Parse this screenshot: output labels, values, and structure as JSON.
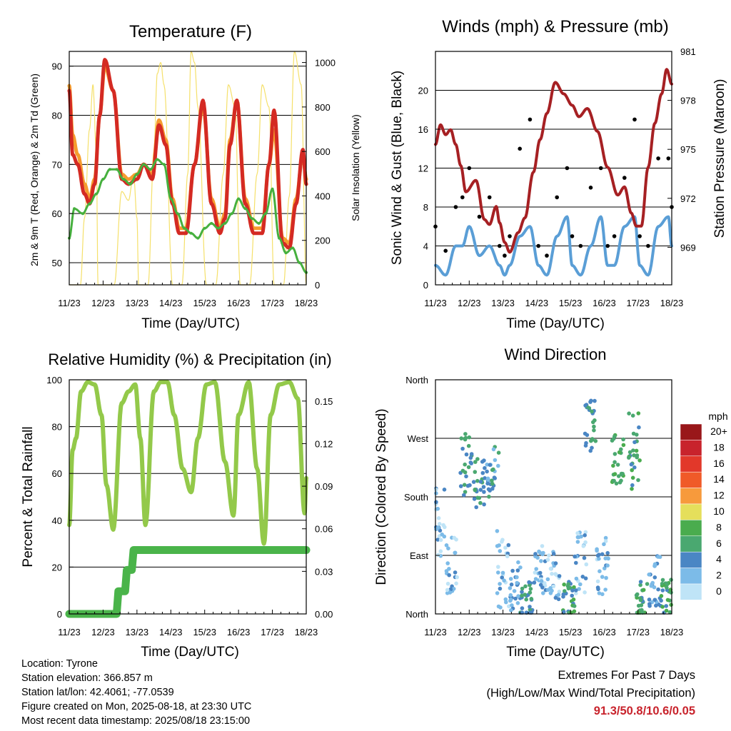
{
  "colors": {
    "red": "#d42a23",
    "orange": "#f59c2e",
    "green": "#46b03e",
    "yellow": "#f5e06a",
    "blue": "#5a9ed6",
    "black": "#000000",
    "maroon": "#a62023",
    "humidity": "#93c94a",
    "precip": "#4ab44a"
  },
  "info": {
    "location": "Location: Tyrone",
    "elevation": "Station elevation: 366.857 m",
    "latlon": "Station lat/lon: 42.4061; -77.0539",
    "created": "Figure created on Mon, 2025-08-18, at 23:30 UTC",
    "recent": "Most recent data timestamp: 2025/08/18 23:15:00"
  },
  "extremes": {
    "title": "Extremes For Past 7 Days",
    "subtitle": "(High/Low/Max Wind/Total Precipitation)",
    "values": "91.3/50.8/10.6/0.05"
  },
  "chart_data": [
    {
      "type": "line",
      "title": "Temperature (F)",
      "xlabel": "Time (Day/UTC)",
      "ylabel": "2m & 9m T (Red, Orange) & 2m Td (Green)",
      "y2label": "Solar Insolation (Yellow)",
      "x_ticks": [
        "11/23",
        "12/23",
        "13/23",
        "14/23",
        "15/23",
        "16/23",
        "17/23",
        "18/23"
      ],
      "xlim": [
        0,
        7
      ],
      "ylim": [
        45.5,
        93
      ],
      "y_ticks": [
        50,
        60,
        70,
        80,
        90
      ],
      "y2lim": [
        0,
        1050
      ],
      "y2_ticks": [
        0,
        200,
        400,
        600,
        800,
        1000
      ],
      "grid": true,
      "series": [
        {
          "color": "orange",
          "axis": "left",
          "x": [
            0,
            0.1,
            0.25,
            0.45,
            0.6,
            0.75,
            0.9,
            1.05,
            1.3,
            1.55,
            1.75,
            2.0,
            2.2,
            2.45,
            2.65,
            2.85,
            3.05,
            3.25,
            3.45,
            3.7,
            3.95,
            4.2,
            4.45,
            4.6,
            4.75,
            4.95,
            5.2,
            5.45,
            5.7,
            5.9,
            6.05,
            6.3,
            6.5,
            6.7,
            6.9,
            7.0
          ],
          "y": [
            86,
            76,
            72,
            66,
            63,
            67,
            80,
            90,
            85,
            68,
            67,
            68,
            70,
            68,
            79,
            75,
            63,
            57,
            57,
            70,
            82,
            63,
            57,
            60,
            75,
            83,
            63,
            57,
            57,
            70,
            77,
            55,
            54,
            63,
            72,
            67
          ]
        },
        {
          "color": "red",
          "axis": "left",
          "x": [
            0,
            0.1,
            0.25,
            0.45,
            0.6,
            0.75,
            0.9,
            1.05,
            1.3,
            1.55,
            1.75,
            2.0,
            2.2,
            2.45,
            2.65,
            2.85,
            3.05,
            3.25,
            3.45,
            3.7,
            3.95,
            4.2,
            4.45,
            4.6,
            4.75,
            4.95,
            5.2,
            5.45,
            5.7,
            5.9,
            6.05,
            6.3,
            6.5,
            6.7,
            6.9,
            7.0
          ],
          "y": [
            85,
            72,
            70,
            64,
            62,
            66,
            80,
            91.3,
            85,
            67,
            66,
            67,
            70,
            67,
            78,
            74,
            62,
            56,
            56,
            70,
            83,
            62,
            56,
            59,
            74,
            83,
            62,
            56,
            56,
            70,
            81,
            54,
            53,
            62,
            73,
            66
          ]
        },
        {
          "color": "green",
          "axis": "left",
          "x": [
            0,
            0.15,
            0.4,
            0.6,
            0.8,
            1.0,
            1.2,
            1.4,
            1.6,
            1.8,
            2.0,
            2.2,
            2.4,
            2.6,
            2.8,
            3.0,
            3.2,
            3.4,
            3.6,
            3.8,
            4.0,
            4.2,
            4.4,
            4.6,
            4.8,
            5.0,
            5.2,
            5.4,
            5.6,
            5.8,
            6.0,
            6.2,
            6.4,
            6.6,
            6.8,
            7.0
          ],
          "y": [
            55,
            61,
            60,
            62,
            64,
            67,
            69,
            69,
            67,
            66,
            68,
            70,
            69,
            71,
            70,
            63,
            60,
            57,
            56,
            55,
            57,
            58,
            57,
            58,
            60,
            63,
            61,
            59,
            58,
            60,
            65,
            55,
            52,
            53,
            50,
            48
          ]
        },
        {
          "color": "yellow",
          "axis": "right",
          "x": [
            0,
            0.33,
            0.45,
            0.6,
            0.7,
            0.8,
            0.85,
            1.33,
            1.55,
            1.75,
            1.9,
            2.0,
            2.05,
            2.33,
            2.5,
            2.6,
            2.7,
            2.8,
            3.05,
            3.33,
            3.5,
            3.6,
            3.7,
            3.8,
            4.05,
            4.33,
            4.55,
            4.7,
            4.9,
            5.05,
            5.33,
            5.55,
            5.7,
            5.9,
            6.05,
            6.33,
            6.5,
            6.65,
            6.85,
            7.0
          ],
          "y": [
            0,
            0,
            300,
            700,
            900,
            600,
            0,
            0,
            420,
            380,
            500,
            300,
            0,
            0,
            600,
            950,
            1000,
            900,
            0,
            0,
            500,
            1050,
            1000,
            800,
            0,
            0,
            500,
            900,
            800,
            0,
            0,
            500,
            900,
            800,
            0,
            0,
            400,
            1050,
            900,
            0
          ]
        }
      ]
    },
    {
      "type": "scatter",
      "title": "Winds (mph) & Pressure (mb)",
      "xlabel": "Time (Day/UTC)",
      "ylabel": "Sonic Wind & Gust (Blue, Black)",
      "y2label": "Station Pressure (Maroon)",
      "x_ticks": [
        "11/23",
        "12/23",
        "13/23",
        "14/23",
        "15/23",
        "16/23",
        "17/23",
        "18/23"
      ],
      "xlim": [
        0,
        7
      ],
      "ylim": [
        0,
        24
      ],
      "y_ticks": [
        0,
        4,
        8,
        12,
        16,
        20
      ],
      "y2lim": [
        966.7,
        981
      ],
      "y2_ticks": [
        969,
        972,
        975,
        978,
        981
      ],
      "grid": true,
      "series": [
        {
          "color": "black",
          "axis": "left",
          "x": [
            0,
            0.3,
            0.6,
            0.8,
            1.0,
            1.3,
            1.6,
            1.9,
            2.05,
            2.2,
            2.5,
            2.8,
            3.05,
            3.3,
            3.6,
            3.9,
            4.05,
            4.3,
            4.6,
            4.9,
            5.1,
            5.3,
            5.6,
            5.9,
            6.05,
            6.3,
            6.6,
            6.9,
            7.0
          ],
          "y": [
            6,
            3.5,
            8,
            9,
            12,
            7,
            9,
            4,
            3,
            5,
            14,
            17,
            4,
            3,
            9,
            12,
            5,
            4,
            10,
            12,
            4,
            5,
            11,
            17,
            5,
            4,
            13,
            13,
            8
          ]
        },
        {
          "color": "blue",
          "axis": "left",
          "x": [
            0,
            0.3,
            0.6,
            0.8,
            1.0,
            1.3,
            1.6,
            1.9,
            2.05,
            2.2,
            2.5,
            2.8,
            3.05,
            3.3,
            3.6,
            3.9,
            4.05,
            4.3,
            4.6,
            4.9,
            5.1,
            5.3,
            5.6,
            5.9,
            6.05,
            6.3,
            6.6,
            6.9,
            7.0
          ],
          "y": [
            2,
            1,
            4,
            4,
            6,
            3,
            4,
            2,
            1,
            2,
            5,
            6,
            2,
            1,
            5,
            7,
            2,
            1,
            4,
            7,
            2,
            2,
            6,
            7,
            2,
            1,
            6,
            7,
            4
          ]
        },
        {
          "color": "maroon",
          "axis": "right",
          "x": [
            0,
            0.15,
            0.3,
            0.45,
            0.6,
            0.75,
            0.9,
            1.2,
            1.45,
            1.6,
            1.8,
            1.9,
            2.05,
            2.2,
            2.45,
            2.65,
            2.9,
            3.1,
            3.3,
            3.55,
            3.8,
            4.05,
            4.25,
            4.5,
            4.8,
            5.1,
            5.4,
            5.6,
            5.8,
            5.95,
            6.1,
            6.3,
            6.5,
            6.7,
            6.85,
            7.0
          ],
          "y": [
            975.3,
            976.5,
            975.9,
            976.2,
            975.3,
            974.0,
            972.4,
            973.1,
            970.7,
            970.4,
            971.5,
            970.5,
            969.3,
            968.7,
            969.9,
            970.8,
            973.6,
            975.6,
            977.2,
            979.1,
            978.4,
            977.7,
            977.0,
            977.5,
            976.1,
            973.9,
            972.2,
            972.7,
            971.1,
            970.3,
            970.3,
            973.9,
            976.6,
            978.4,
            979.9,
            979.0
          ]
        }
      ]
    },
    {
      "type": "line",
      "title": "Relative Humidity (%) & Precipitation (in)",
      "xlabel": "Time (Day/UTC)",
      "ylabel": "Percent & Total Rainfall",
      "x_ticks": [
        "11/23",
        "12/23",
        "13/23",
        "14/23",
        "15/23",
        "16/23",
        "17/23",
        "18/23"
      ],
      "xlim": [
        0,
        7
      ],
      "ylim": [
        0,
        100
      ],
      "y_ticks": [
        0,
        20,
        40,
        60,
        80,
        100
      ],
      "y2lim": [
        0,
        0.165
      ],
      "y2_ticks": [
        "0.00",
        "0.03",
        "0.06",
        "0.09",
        "0.12",
        "0.15"
      ],
      "grid": true,
      "series": [
        {
          "color": "humidity",
          "axis": "left",
          "x": [
            0,
            0.1,
            0.2,
            0.35,
            0.55,
            0.75,
            0.95,
            1.1,
            1.3,
            1.55,
            1.75,
            1.95,
            2.1,
            2.25,
            2.5,
            2.7,
            2.9,
            3.1,
            3.35,
            3.6,
            3.8,
            4.05,
            4.3,
            4.6,
            4.85,
            5.0,
            5.3,
            5.55,
            5.75,
            5.95,
            6.2,
            6.5,
            6.75,
            6.95,
            7.0
          ],
          "y": [
            38,
            70,
            75,
            95,
            99,
            98,
            85,
            55,
            36,
            90,
            95,
            98,
            75,
            38,
            95,
            99,
            99,
            85,
            62,
            52,
            75,
            98,
            99,
            65,
            42,
            85,
            99,
            62,
            30,
            85,
            98,
            99,
            92,
            43,
            58
          ]
        },
        {
          "color": "precip",
          "axis": "right",
          "x": [
            0,
            1.4,
            1.45,
            1.65,
            1.7,
            1.85,
            1.9,
            7.0
          ],
          "y": [
            0,
            0,
            0.016,
            0.016,
            0.031,
            0.031,
            0.045,
            0.045
          ]
        }
      ]
    },
    {
      "type": "scatter",
      "title": "Wind Direction",
      "xlabel": "Time (Day/UTC)",
      "ylabel": "Direction (Colored By Speed)",
      "x_ticks": [
        "11/23",
        "12/23",
        "13/23",
        "14/23",
        "15/23",
        "16/23",
        "17/23",
        "18/23"
      ],
      "y_ticks": [
        "North",
        "East",
        "South",
        "West",
        "North"
      ],
      "ylim": [
        0,
        360
      ],
      "grid": true,
      "legend": {
        "title": "mph",
        "labels": [
          "20+",
          "18",
          "16",
          "14",
          "12",
          "10",
          "8",
          "6",
          "4",
          "2",
          "0"
        ],
        "colors": [
          "#99171a",
          "#c8232c",
          "#e2382a",
          "#f05a28",
          "#f79a3c",
          "#e5df5b",
          "#4aac4e",
          "#4aa870",
          "#4a86c4",
          "#7cbbe8",
          "#bfe4f7"
        ]
      },
      "clusters": [
        {
          "x": 0.1,
          "dir": 140,
          "spread": 60,
          "speed": 2
        },
        {
          "x": 0.5,
          "dir": 80,
          "spread": 50,
          "speed": 2
        },
        {
          "x": 0.9,
          "dir": 230,
          "spread": 50,
          "speed": 5
        },
        {
          "x": 1.3,
          "dir": 200,
          "spread": 40,
          "speed": 5
        },
        {
          "x": 1.7,
          "dir": 220,
          "spread": 40,
          "speed": 4
        },
        {
          "x": 2.0,
          "dir": 70,
          "spread": 60,
          "speed": 2
        },
        {
          "x": 2.35,
          "dir": 40,
          "spread": 40,
          "speed": 3
        },
        {
          "x": 2.7,
          "dir": 20,
          "spread": 30,
          "speed": 5
        },
        {
          "x": 3.1,
          "dir": 70,
          "spread": 40,
          "speed": 2
        },
        {
          "x": 3.5,
          "dir": 60,
          "spread": 40,
          "speed": 2
        },
        {
          "x": 3.95,
          "dir": 20,
          "spread": 30,
          "speed": 6
        },
        {
          "x": 4.3,
          "dir": 80,
          "spread": 50,
          "speed": 2
        },
        {
          "x": 4.6,
          "dir": 290,
          "spread": 40,
          "speed": 5
        },
        {
          "x": 4.95,
          "dir": 70,
          "spread": 50,
          "speed": 2
        },
        {
          "x": 5.4,
          "dir": 240,
          "spread": 40,
          "speed": 7
        },
        {
          "x": 5.9,
          "dir": 250,
          "spread": 60,
          "speed": 6
        },
        {
          "x": 6.1,
          "dir": 20,
          "spread": 30,
          "speed": 6
        },
        {
          "x": 6.5,
          "dir": 50,
          "spread": 40,
          "speed": 3
        },
        {
          "x": 6.85,
          "dir": 30,
          "spread": 30,
          "speed": 6
        }
      ]
    }
  ]
}
